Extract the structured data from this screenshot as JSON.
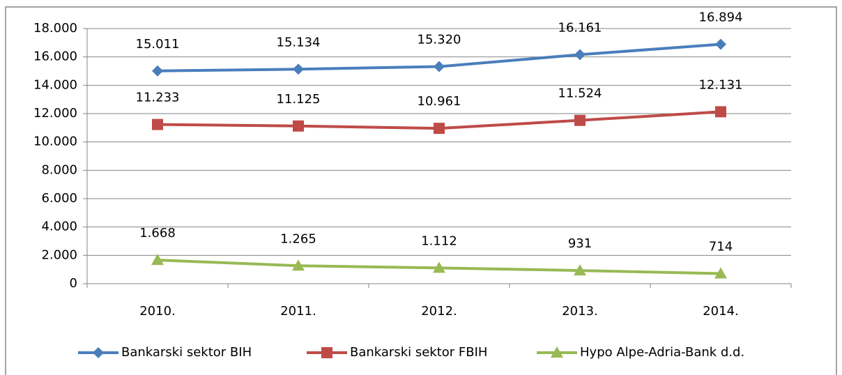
{
  "chart_data": {
    "type": "line",
    "categories": [
      "2010.",
      "2011.",
      "2012.",
      "2013.",
      "2014."
    ],
    "series": [
      {
        "name": "Bankarski sektor BIH",
        "color": "#4a7ebb",
        "marker": "diamond",
        "values": [
          15011,
          15134,
          15320,
          16161,
          16894
        ],
        "value_labels": [
          "15.011",
          "15.134",
          "15.320",
          "16.161",
          "16.894"
        ]
      },
      {
        "name": "Bankarski sektor FBIH",
        "color": "#be4b48",
        "marker": "square",
        "values": [
          11233,
          11125,
          10961,
          11524,
          12131
        ],
        "value_labels": [
          "11.233",
          "11.125",
          "10.961",
          "11.524",
          "12.131"
        ]
      },
      {
        "name": "Hypo Alpe-Adria-Bank d.d.",
        "color": "#98b954",
        "marker": "triangle",
        "values": [
          1668,
          1265,
          1112,
          931,
          714
        ],
        "value_labels": [
          "1.668",
          "1.265",
          "1.112",
          "931",
          "714"
        ]
      }
    ],
    "ylim": [
      0,
      18000
    ],
    "yticks": [
      0,
      {
        "value": 2000,
        "label": "2.000"
      },
      {
        "value": 4000,
        "label": "4.000"
      },
      {
        "value": 6000,
        "label": "6.000"
      },
      {
        "value": 8000,
        "label": "8.000"
      },
      {
        "value": 10000,
        "label": "10.000"
      },
      {
        "value": 12000,
        "label": "12.000"
      },
      {
        "value": 14000,
        "label": "14.000"
      },
      {
        "value": 16000,
        "label": "16.000"
      },
      {
        "value": 18000,
        "label": "18.000"
      }
    ],
    "grid": true,
    "legend": "bottom"
  }
}
